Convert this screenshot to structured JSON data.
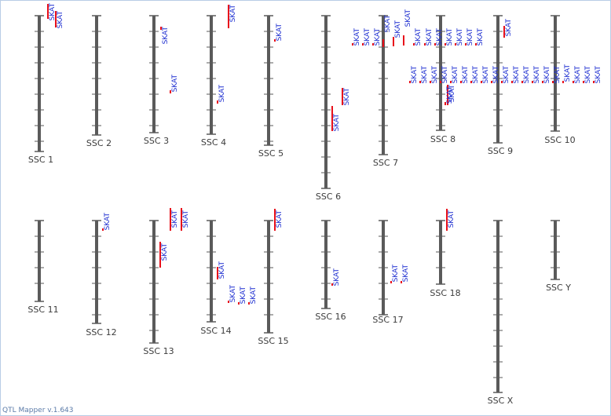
{
  "app": {
    "footer": "QTL Mapper v.1.643"
  },
  "colors": {
    "chromosome": "#5a5a5a",
    "qtl_bar": "#e8101a",
    "qtl_text": "#1e2fd0",
    "chr_text": "#3c3c3c"
  },
  "chromosomes": [
    {
      "name": "SSC 1"
    },
    {
      "name": "SSC 2"
    },
    {
      "name": "SSC 3"
    },
    {
      "name": "SSC 4"
    },
    {
      "name": "SSC 5"
    },
    {
      "name": "SSC 6"
    },
    {
      "name": "SSC 7"
    },
    {
      "name": "SSC 8"
    },
    {
      "name": "SSC 9"
    },
    {
      "name": "SSC 10"
    },
    {
      "name": "SSC 11"
    },
    {
      "name": "SSC 12"
    },
    {
      "name": "SSC 13"
    },
    {
      "name": "SSC 14"
    },
    {
      "name": "SSC 15"
    },
    {
      "name": "SSC 16"
    },
    {
      "name": "SSC 17"
    },
    {
      "name": "SSC 18"
    },
    {
      "name": "SSC X"
    },
    {
      "name": "SSC Y"
    }
  ],
  "qtls": [
    {
      "chr": "SSC 1",
      "label": "SKAT"
    },
    {
      "chr": "SSC 1",
      "label": "SKAT"
    },
    {
      "chr": "SSC 3",
      "label": "SKAT"
    },
    {
      "chr": "SSC 3",
      "label": "SKAT"
    },
    {
      "chr": "SSC 4",
      "label": "SKAT"
    },
    {
      "chr": "SSC 4",
      "label": "SKAT"
    },
    {
      "chr": "SSC 5",
      "label": "SKAT"
    },
    {
      "chr": "SSC 6",
      "label": "SKAT"
    },
    {
      "chr": "SSC 6",
      "label": "SKAT"
    },
    {
      "chr": "SSC 7",
      "label": "SKAT"
    },
    {
      "chr": "SSC 7",
      "label": "SKAT"
    },
    {
      "chr": "SSC 7",
      "label": "SKAT"
    },
    {
      "chr": "SSC 7",
      "label": "SKAT"
    },
    {
      "chr": "SSC 7",
      "label": "SKAT"
    },
    {
      "chr": "SSC 7",
      "label": "SKAT"
    },
    {
      "chr": "SSC 7",
      "label": "SKAT"
    },
    {
      "chr": "SSC 8",
      "label": "SKAT"
    },
    {
      "chr": "SSC 8",
      "label": "SKAT"
    },
    {
      "chr": "SSC 8",
      "label": "SKAT"
    },
    {
      "chr": "SSC 8",
      "label": "SKAT"
    },
    {
      "chr": "SSC 8",
      "label": "SKAT"
    },
    {
      "chr": "SSC 8",
      "label": "SKAT"
    },
    {
      "chr": "SSC 8",
      "label": "SKAT"
    },
    {
      "chr": "SSC 8",
      "label": "SKAT"
    },
    {
      "chr": "SSC 8",
      "label": "SKAT"
    },
    {
      "chr": "SSC 8",
      "label": "SKAT"
    },
    {
      "chr": "SSC 8",
      "label": "SKAT"
    },
    {
      "chr": "SSC 8",
      "label": "SKAT"
    },
    {
      "chr": "SSC 8",
      "label": "SKAT"
    },
    {
      "chr": "SSC 9",
      "label": "SKAT"
    },
    {
      "chr": "SSC 9",
      "label": "SKAT"
    },
    {
      "chr": "SSC 9",
      "label": "SKAT"
    },
    {
      "chr": "SSC 9",
      "label": "SKAT"
    },
    {
      "chr": "SSC 9",
      "label": "SKAT"
    },
    {
      "chr": "SSC 9",
      "label": "SKAT"
    },
    {
      "chr": "SSC 9",
      "label": "SKAT"
    },
    {
      "chr": "SSC 10",
      "label": "SKAT"
    },
    {
      "chr": "SSC 10",
      "label": "SKAT"
    },
    {
      "chr": "SSC 10",
      "label": "SKAT"
    },
    {
      "chr": "SSC 10",
      "label": "SKAT"
    },
    {
      "chr": "SSC 10",
      "label": "SKAT"
    },
    {
      "chr": "SSC 10",
      "label": "SKAT"
    },
    {
      "chr": "SSC 10",
      "label": "SKAT"
    },
    {
      "chr": "SSC 10",
      "label": "SKAT"
    },
    {
      "chr": "SSC 12",
      "label": "SKAT"
    },
    {
      "chr": "SSC 13",
      "label": "SKAT"
    },
    {
      "chr": "SSC 13",
      "label": "SKAT"
    },
    {
      "chr": "SSC 13",
      "label": "SKAT"
    },
    {
      "chr": "SSC 14",
      "label": "SKAT"
    },
    {
      "chr": "SSC 14",
      "label": "SKAT"
    },
    {
      "chr": "SSC 14",
      "label": "SKAT"
    },
    {
      "chr": "SSC 14",
      "label": "SKAT"
    },
    {
      "chr": "SSC 15",
      "label": "SKAT"
    },
    {
      "chr": "SSC 16",
      "label": "SKAT"
    },
    {
      "chr": "SSC 17",
      "label": "SKAT"
    },
    {
      "chr": "SSC 17",
      "label": "SKAT"
    },
    {
      "chr": "SSC 18",
      "label": "SKAT"
    }
  ]
}
